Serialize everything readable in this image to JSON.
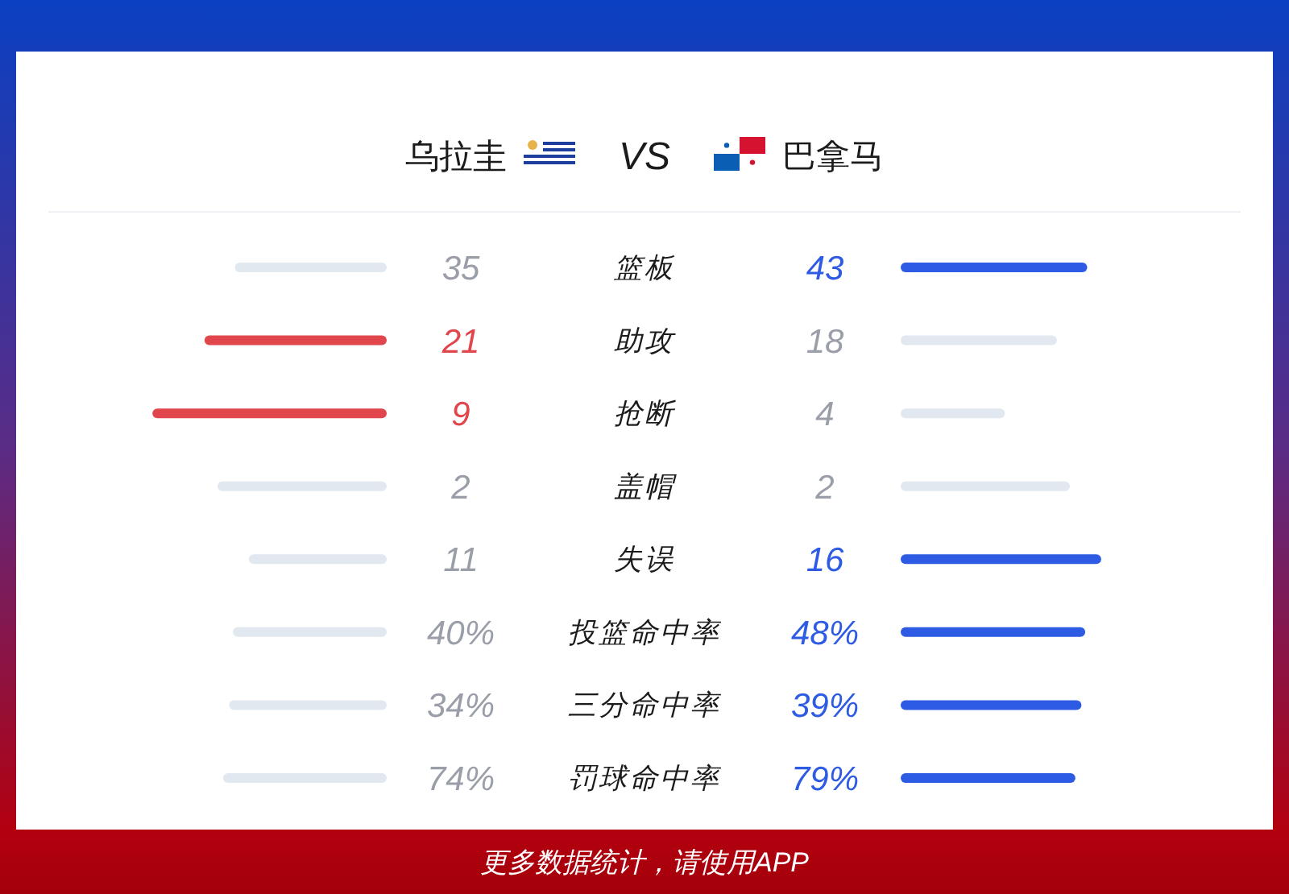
{
  "chart_data": [
    {
      "type": "other",
      "annotations": [
        "乌拉圭",
        "VS",
        "巴拿马",
        "更多数据统计，请使用APP"
      ]
    },
    {
      "type": "bar",
      "orientation": "horizontal",
      "categories": [
        "篮板"
      ],
      "tick_labels": false,
      "series": [
        {
          "values": [
            35
          ],
          "value_labels": [
            "35"
          ],
          "color": "#e2e8f0"
        }
      ]
    },
    {
      "type": "bar",
      "orientation": "horizontal",
      "categories": [
        "篮板"
      ],
      "series": [
        {
          "values": [
            43
          ],
          "value_labels": [
            "43"
          ],
          "color": "#2d5be3"
        }
      ]
    },
    {
      "type": "bar",
      "orientation": "horizontal",
      "categories": [
        "助攻"
      ],
      "tick_labels": false,
      "series": [
        {
          "values": [
            21
          ],
          "value_labels": [
            "21"
          ],
          "color": "#e0464b"
        }
      ]
    },
    {
      "type": "bar",
      "orientation": "horizontal",
      "categories": [
        "助攻"
      ],
      "series": [
        {
          "values": [
            18
          ],
          "value_labels": [
            "18"
          ],
          "color": "#e2e8f0"
        }
      ]
    },
    {
      "type": "bar",
      "orientation": "horizontal",
      "categories": [
        "抢断"
      ],
      "tick_labels": false,
      "series": [
        {
          "values": [
            9
          ],
          "value_labels": [
            "9"
          ],
          "color": "#e0464b"
        }
      ]
    },
    {
      "type": "bar",
      "orientation": "horizontal",
      "categories": [
        "抢断"
      ],
      "series": [
        {
          "values": [
            4
          ],
          "value_labels": [
            "4"
          ],
          "color": "#e2e8f0"
        }
      ]
    },
    {
      "type": "bar",
      "orientation": "horizontal",
      "categories": [
        "盖帽"
      ],
      "tick_labels": false,
      "series": [
        {
          "values": [
            2
          ],
          "value_labels": [
            "2"
          ],
          "color": "#e2e8f0"
        }
      ]
    },
    {
      "type": "bar",
      "orientation": "horizontal",
      "categories": [
        "盖帽"
      ],
      "series": [
        {
          "values": [
            2
          ],
          "value_labels": [
            "2"
          ],
          "color": "#e2e8f0"
        }
      ]
    },
    {
      "type": "bar",
      "orientation": "horizontal",
      "categories": [
        "失误"
      ],
      "tick_labels": false,
      "series": [
        {
          "values": [
            11
          ],
          "value_labels": [
            "11"
          ],
          "color": "#e2e8f0"
        }
      ]
    },
    {
      "type": "bar",
      "orientation": "horizontal",
      "categories": [
        "失误"
      ],
      "series": [
        {
          "values": [
            16
          ],
          "value_labels": [
            "16"
          ],
          "color": "#2d5be3"
        }
      ]
    },
    {
      "type": "bar",
      "orientation": "horizontal",
      "categories": [
        "投篮命中率"
      ],
      "tick_labels": false,
      "series": [
        {
          "values": [
            40
          ],
          "value_labels": [
            "40%"
          ],
          "color": "#e2e8f0"
        }
      ]
    },
    {
      "type": "bar",
      "orientation": "horizontal",
      "categories": [
        "投篮命中率"
      ],
      "series": [
        {
          "values": [
            48
          ],
          "value_labels": [
            "48%"
          ],
          "color": "#2d5be3"
        }
      ]
    },
    {
      "type": "bar",
      "orientation": "horizontal",
      "categories": [
        "三分命中率"
      ],
      "tick_labels": false,
      "series": [
        {
          "values": [
            34
          ],
          "value_labels": [
            "34%"
          ],
          "color": "#e2e8f0"
        }
      ]
    },
    {
      "type": "bar",
      "orientation": "horizontal",
      "categories": [
        "三分命中率"
      ],
      "series": [
        {
          "values": [
            39
          ],
          "value_labels": [
            "39%"
          ],
          "color": "#2d5be3"
        }
      ]
    },
    {
      "type": "bar",
      "orientation": "horizontal",
      "categories": [
        "罚球命中率"
      ],
      "tick_labels": false,
      "series": [
        {
          "values": [
            74
          ],
          "value_labels": [
            "74%"
          ],
          "color": "#e2e8f0"
        }
      ]
    },
    {
      "type": "bar",
      "orientation": "horizontal",
      "categories": [
        "罚球命中率"
      ],
      "series": [
        {
          "values": [
            79
          ],
          "value_labels": [
            "79%"
          ],
          "color": "#2d5be3"
        }
      ]
    }
  ]
}
